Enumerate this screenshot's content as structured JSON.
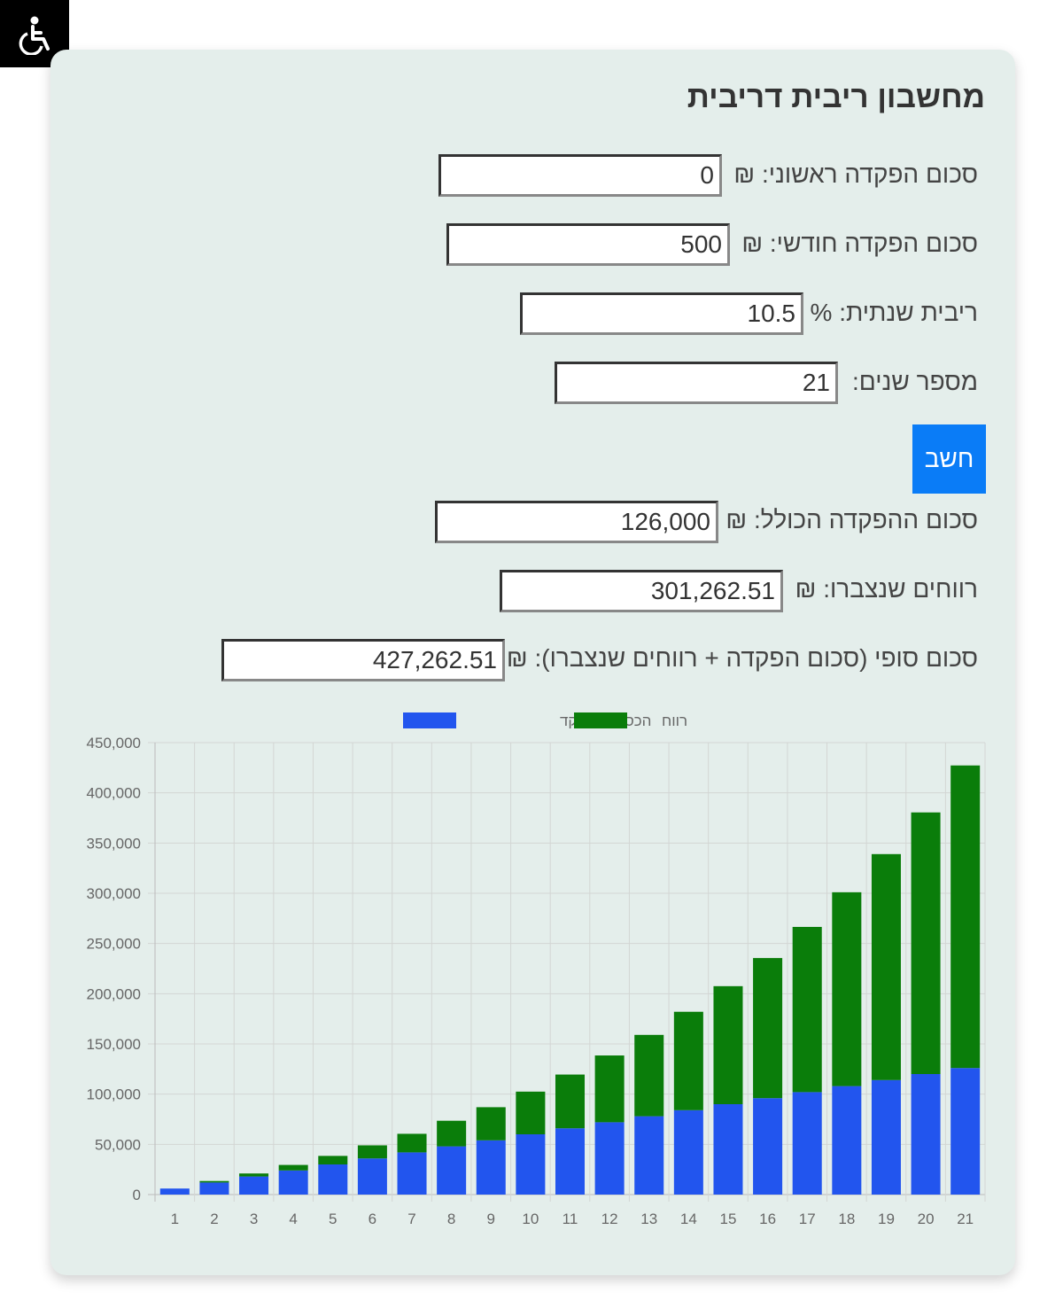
{
  "accessibility": {
    "icon": "wheelchair-icon"
  },
  "calculator": {
    "title": "מחשבון ריבית דריבית",
    "fields": {
      "initial_deposit": {
        "label": "סכום הפקדה ראשוני: ₪",
        "value": "0"
      },
      "monthly_deposit": {
        "label": "סכום הפקדה חודשי: ₪",
        "value": "500"
      },
      "annual_interest": {
        "label": "ריבית שנתית: %",
        "value": "10.5"
      },
      "years": {
        "label": "מספר שנים:",
        "value": "21"
      }
    },
    "calculate_label": "חשב",
    "results": {
      "total_deposit": {
        "label": "סכום ההפקדה הכולל: ₪",
        "value": "126,000"
      },
      "earnings": {
        "label": "רווחים שנצברו: ₪",
        "value": "301,262.51"
      },
      "final_amount": {
        "label": "סכום סופי (סכום הפקדה + רווחים שנצברו): ₪",
        "value": "427,262.51"
      }
    }
  },
  "colors": {
    "deposit": "#2255ee",
    "profit": "#0a7d0a",
    "button": "#0a7cf7",
    "card": "#e4eeeb"
  },
  "chart_data": {
    "type": "bar",
    "stacked": true,
    "categories": [
      "1",
      "2",
      "3",
      "4",
      "5",
      "6",
      "7",
      "8",
      "9",
      "10",
      "11",
      "12",
      "13",
      "14",
      "15",
      "16",
      "17",
      "18",
      "19",
      "20",
      "21"
    ],
    "series": [
      {
        "name": "הכסף שהופקד",
        "color": "#2255ee",
        "values": [
          6000,
          12000,
          18000,
          24000,
          30000,
          36000,
          42000,
          48000,
          54000,
          60000,
          66000,
          72000,
          78000,
          84000,
          90000,
          96000,
          102000,
          108000,
          114000,
          120000,
          126000
        ]
      },
      {
        "name": "רווח",
        "color": "#0a7d0a",
        "values": [
          0,
          1500,
          3000,
          5500,
          8500,
          13000,
          18500,
          25500,
          33000,
          42500,
          53500,
          66500,
          81000,
          98000,
          117500,
          139500,
          164500,
          193000,
          225000,
          260500,
          301262.51
        ]
      }
    ],
    "ylim": [
      0,
      450000
    ],
    "yticks": [
      "0",
      "50,000",
      "100,000",
      "150,000",
      "200,000",
      "250,000",
      "300,000",
      "350,000",
      "400,000",
      "450,000"
    ],
    "ytick_values": [
      0,
      50000,
      100000,
      150000,
      200000,
      250000,
      300000,
      350000,
      400000,
      450000
    ],
    "grid": true,
    "legend": "top-center"
  }
}
